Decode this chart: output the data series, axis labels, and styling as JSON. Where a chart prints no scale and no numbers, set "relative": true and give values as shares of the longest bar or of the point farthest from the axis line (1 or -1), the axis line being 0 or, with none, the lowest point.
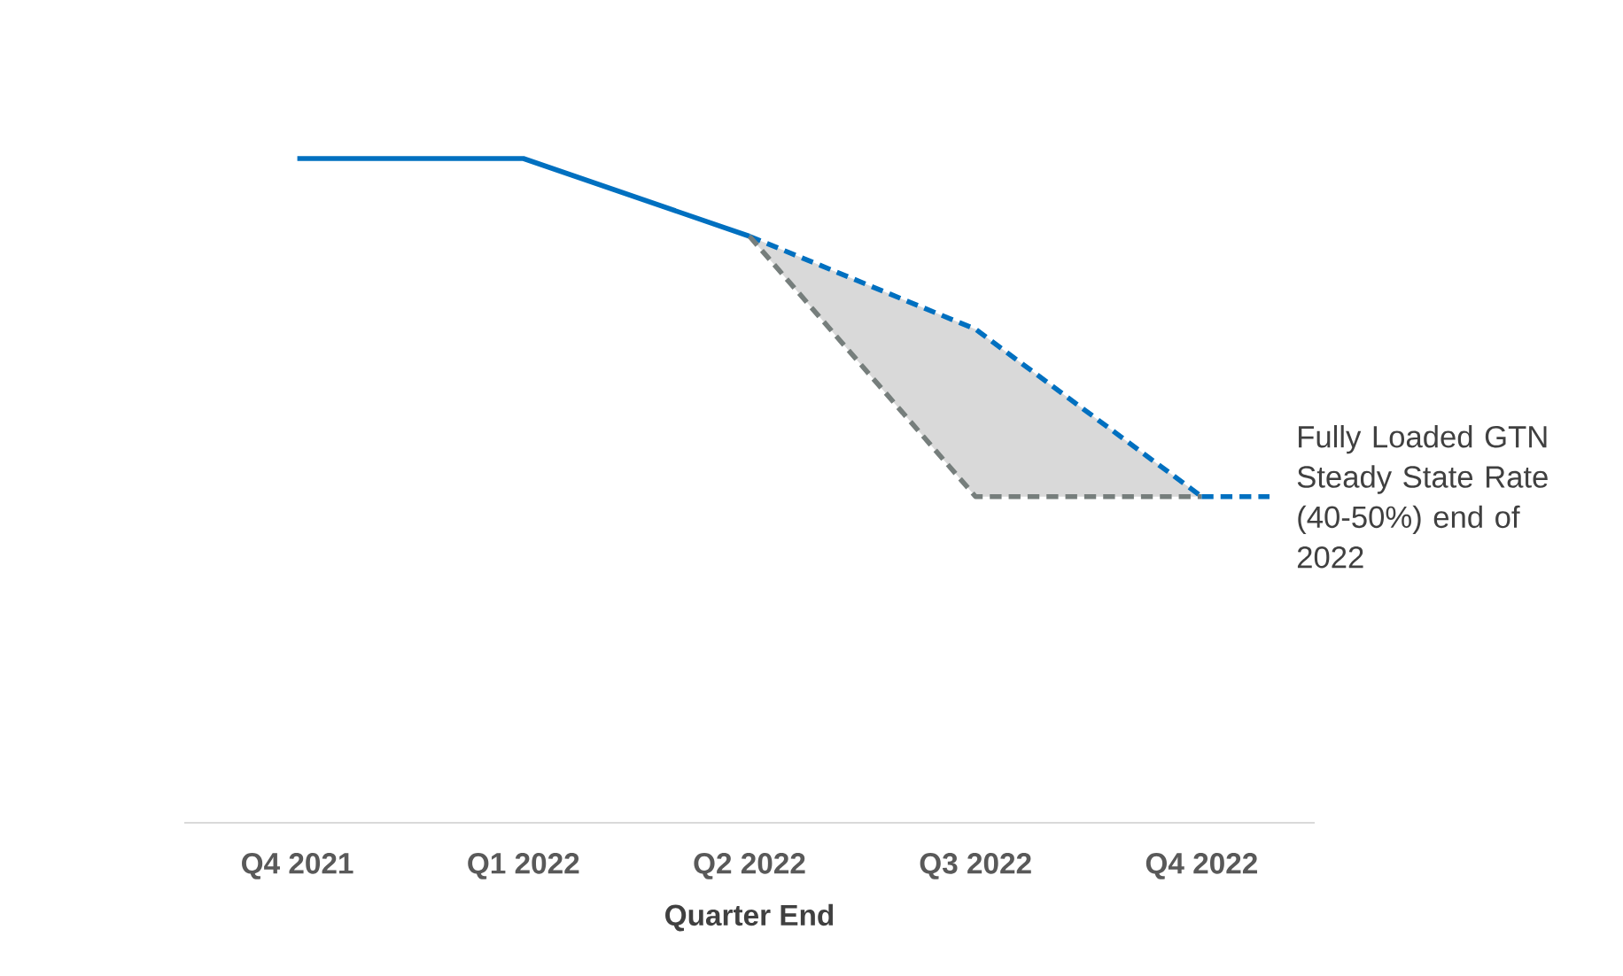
{
  "chart_data": {
    "type": "line",
    "relative": true,
    "xlabel": "Quarter End",
    "categories": [
      "Q4 2021",
      "Q1 2022",
      "Q2 2022",
      "Q3 2022",
      "Q4 2022"
    ],
    "series": [
      {
        "color": "#0070c0",
        "line_style": "solid",
        "values": [
          1,
          1,
          0.883,
          null,
          null
        ]
      },
      {
        "color": "#0070c0",
        "line_style": "dashed",
        "values": [
          null,
          null,
          0.883,
          0.743,
          0.491
        ],
        "lower": [
          null,
          null,
          0.883,
          0.491,
          0.491
        ],
        "upper": [
          null,
          null,
          0.883,
          0.743,
          0.491
        ]
      },
      {
        "color": "#767e7c",
        "line_style": "dashed",
        "values": [
          null,
          null,
          0.883,
          0.491,
          0.491
        ]
      }
    ],
    "marker": "none",
    "annotations": [
      "Fully Loaded GTN Steady State Rate (40-50%) end of 2022"
    ]
  }
}
